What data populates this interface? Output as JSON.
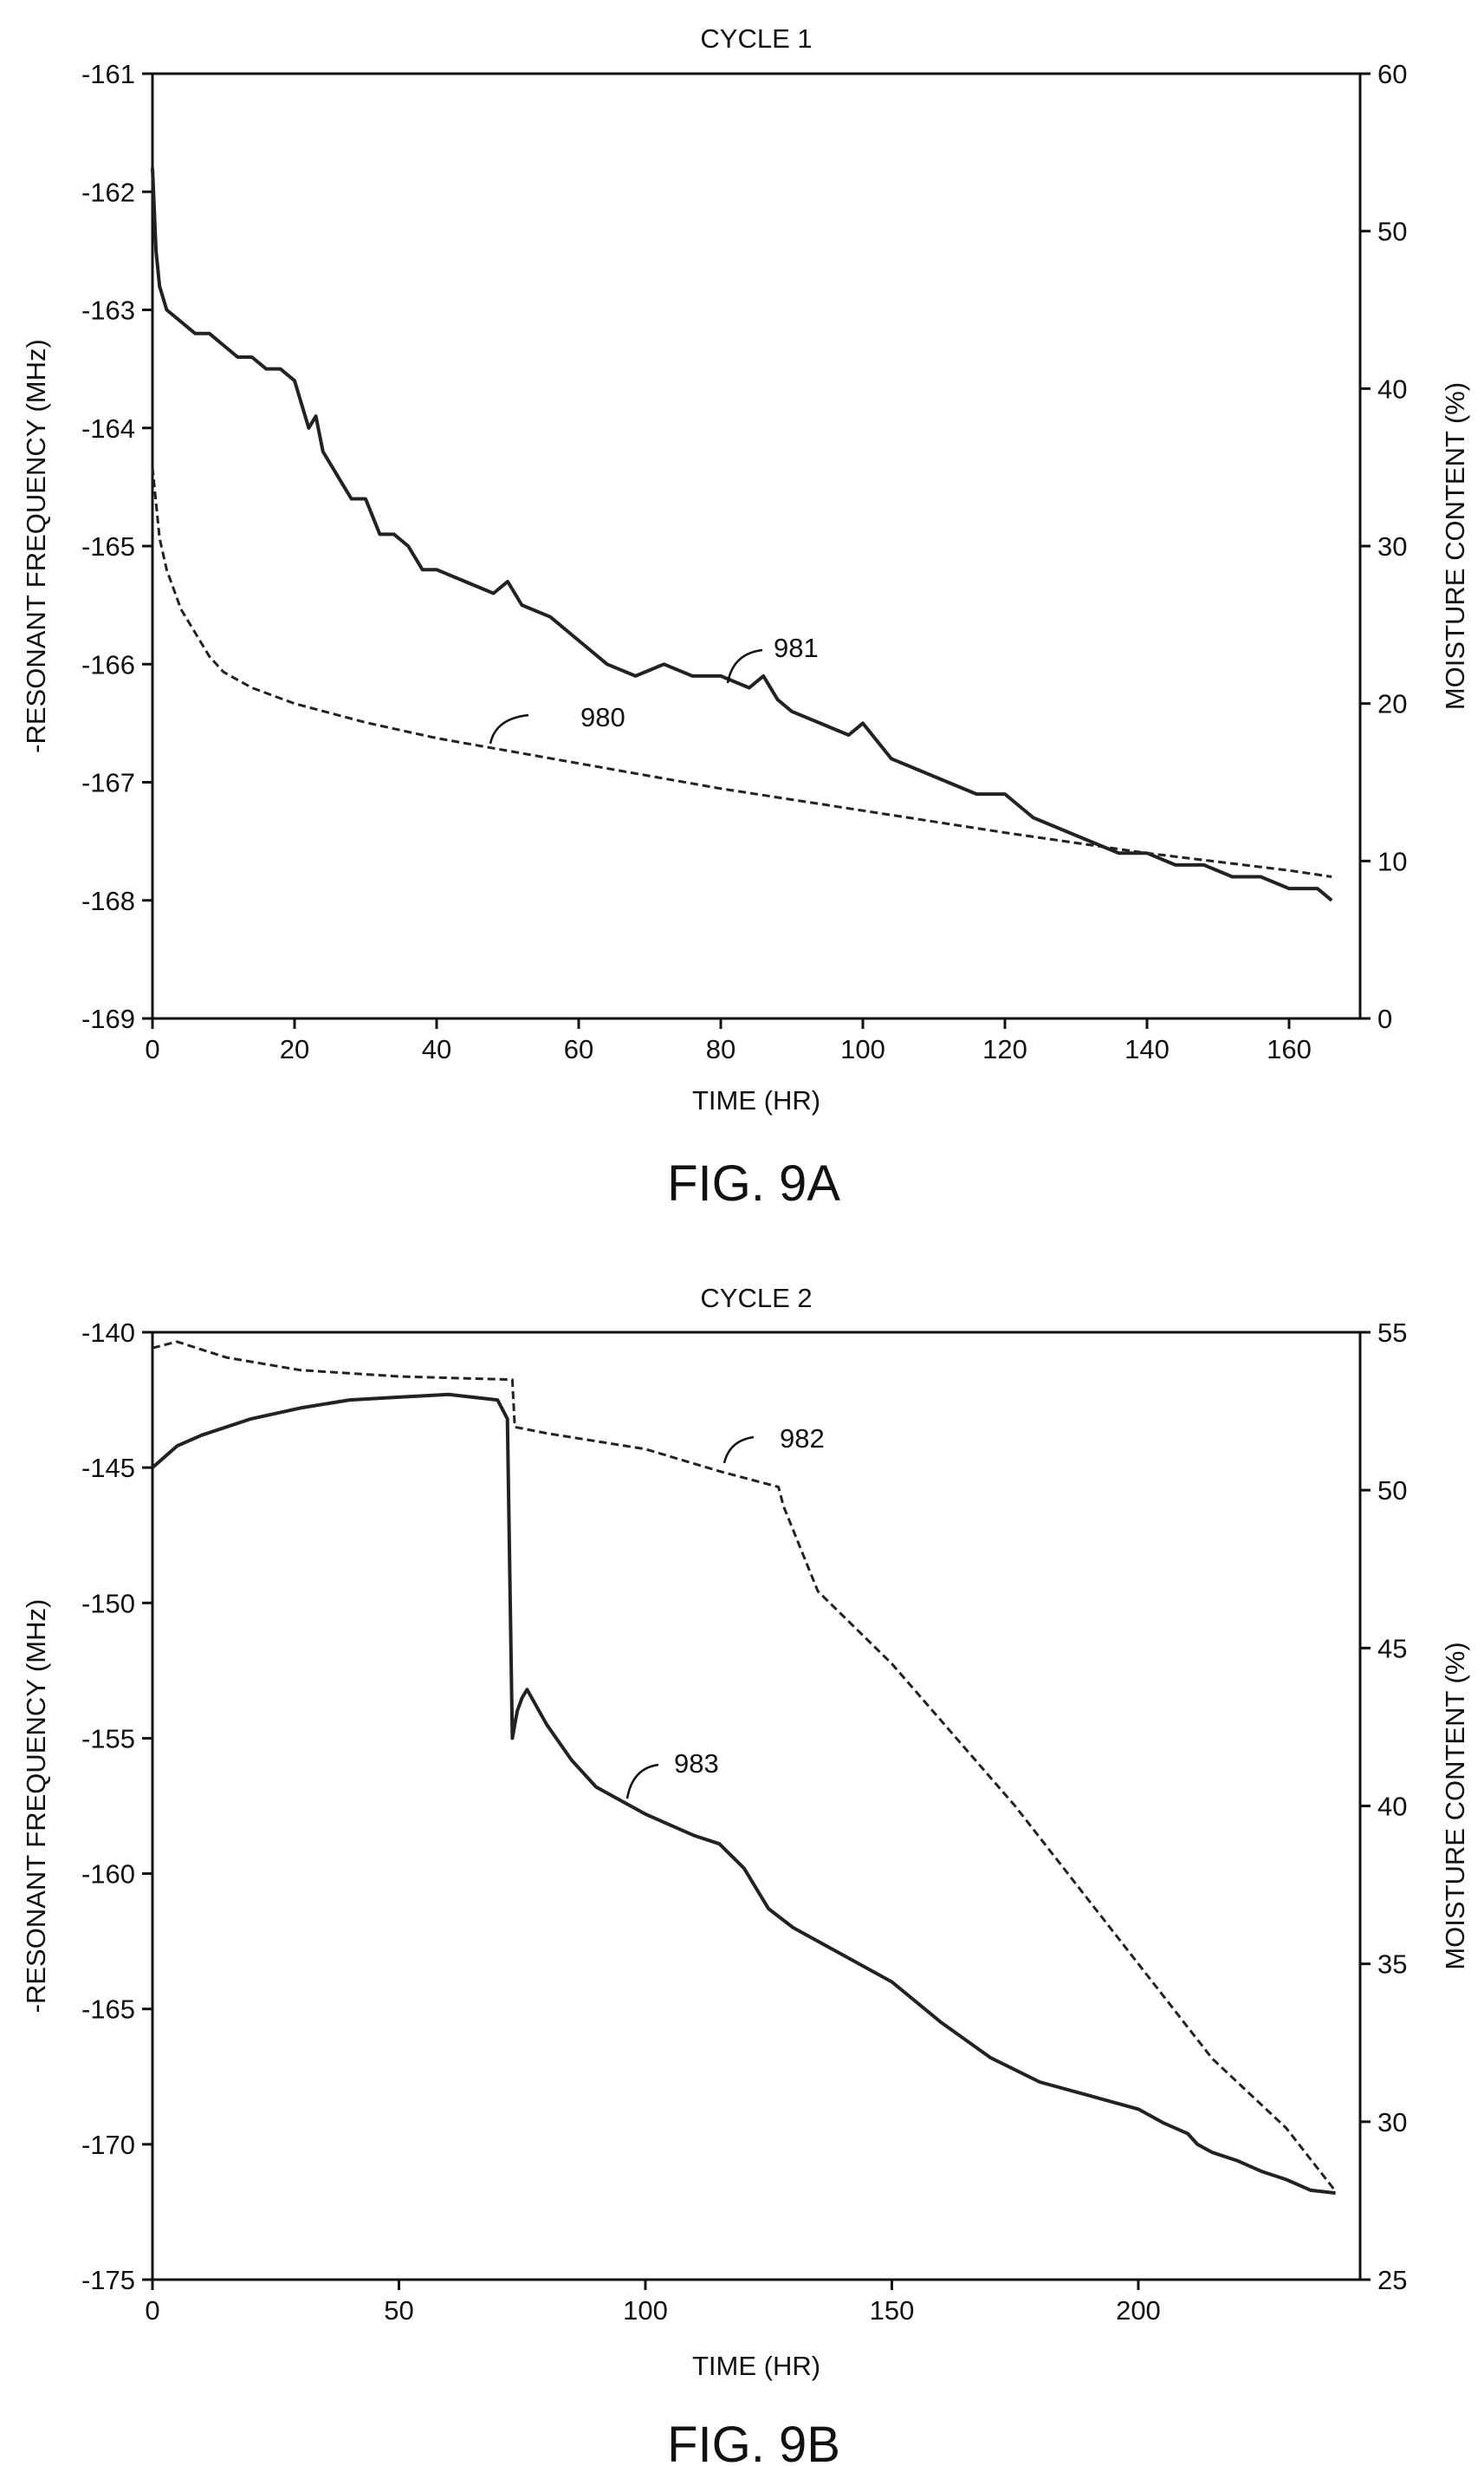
{
  "chart_data": [
    {
      "type": "line",
      "title": "CYCLE 1",
      "xlabel": "TIME (HR)",
      "ylabel": "-RESONANT FREQUENCY (MHz)",
      "y2label": "MOISTURE CONTENT (%)",
      "figure_label": "FIG. 9A",
      "xlim": [
        0,
        170
      ],
      "ylim": [
        -169,
        -161
      ],
      "y2lim": [
        0,
        60
      ],
      "xticks": [
        "0",
        "20",
        "40",
        "60",
        "80",
        "100",
        "120",
        "140",
        "160"
      ],
      "yticks": [
        "-161",
        "-162",
        "-163",
        "-164",
        "-165",
        "-166",
        "-167",
        "-168",
        "-169"
      ],
      "y2ticks": [
        "60",
        "50",
        "40",
        "30",
        "20",
        "10",
        "0"
      ],
      "grid": false,
      "series": [
        {
          "name": "980",
          "axis": "y2",
          "style": "dashed",
          "x": [
            0,
            1,
            2,
            4,
            6,
            8,
            10,
            14,
            20,
            30,
            40,
            60,
            80,
            100,
            120,
            140,
            160,
            166
          ],
          "y": [
            35,
            30.5,
            28.5,
            26,
            24.5,
            23,
            22,
            21,
            20,
            18.8,
            17.8,
            16.2,
            14.6,
            13.2,
            11.8,
            10.5,
            9.4,
            9
          ]
        },
        {
          "name": "981",
          "axis": "y",
          "style": "solid",
          "x": [
            0,
            0.5,
            1,
            2,
            4,
            6,
            8,
            10,
            12,
            14,
            16,
            18,
            20,
            22,
            23,
            24,
            26,
            28,
            30,
            32,
            34,
            36,
            38,
            40,
            44,
            48,
            50,
            52,
            56,
            60,
            64,
            68,
            72,
            76,
            80,
            84,
            86,
            88,
            90,
            94,
            98,
            100,
            104,
            108,
            112,
            116,
            120,
            124,
            128,
            132,
            136,
            140,
            144,
            148,
            152,
            156,
            160,
            164,
            166
          ],
          "y": [
            -161.8,
            -162.5,
            -162.8,
            -163.0,
            -163.1,
            -163.2,
            -163.2,
            -163.3,
            -163.4,
            -163.4,
            -163.5,
            -163.5,
            -163.6,
            -164.0,
            -163.9,
            -164.2,
            -164.4,
            -164.6,
            -164.6,
            -164.9,
            -164.9,
            -165.0,
            -165.2,
            -165.2,
            -165.3,
            -165.4,
            -165.3,
            -165.5,
            -165.6,
            -165.8,
            -166.0,
            -166.1,
            -166.0,
            -166.1,
            -166.1,
            -166.2,
            -166.1,
            -166.3,
            -166.4,
            -166.5,
            -166.6,
            -166.5,
            -166.8,
            -166.9,
            -167.0,
            -167.1,
            -167.1,
            -167.3,
            -167.4,
            -167.5,
            -167.6,
            -167.6,
            -167.7,
            -167.7,
            -167.8,
            -167.8,
            -167.9,
            -167.9,
            -168.0
          ]
        }
      ]
    },
    {
      "type": "line",
      "title": "CYCLE 2",
      "xlabel": "TIME (HR)",
      "ylabel": "-RESONANT FREQUENCY (MHz)",
      "y2label": "MOISTURE CONTENT (%)",
      "figure_label": "FIG. 9B",
      "xlim": [
        0,
        245
      ],
      "ylim": [
        -175,
        -140
      ],
      "y2lim": [
        25,
        55
      ],
      "xticks": [
        "0",
        "50",
        "100",
        "150",
        "200"
      ],
      "yticks": [
        "-140",
        "-145",
        "-150",
        "-155",
        "-160",
        "-165",
        "-170",
        "-175"
      ],
      "y2ticks": [
        "55",
        "50",
        "45",
        "40",
        "35",
        "30",
        "25"
      ],
      "grid": false,
      "series": [
        {
          "name": "982",
          "axis": "y2",
          "style": "dashed",
          "x": [
            0,
            5,
            15,
            30,
            50,
            73,
            73.5,
            80,
            100,
            115,
            127,
            128,
            135,
            150,
            175,
            200,
            215,
            230,
            240
          ],
          "y": [
            54.5,
            54.7,
            54.2,
            53.8,
            53.6,
            53.5,
            52,
            51.8,
            51.3,
            50.6,
            50.1,
            49.5,
            46.8,
            44.5,
            40,
            35,
            32,
            29.8,
            27.8
          ]
        },
        {
          "name": "983",
          "axis": "y",
          "style": "solid",
          "x": [
            0,
            5,
            10,
            20,
            30,
            40,
            50,
            60,
            70,
            72,
            73,
            74,
            75,
            76,
            80,
            85,
            90,
            95,
            100,
            105,
            110,
            115,
            120,
            125,
            130,
            140,
            150,
            160,
            170,
            180,
            190,
            200,
            205,
            210,
            212,
            215,
            220,
            225,
            230,
            235,
            240
          ],
          "y": [
            -145,
            -144.2,
            -143.8,
            -143.2,
            -142.8,
            -142.5,
            -142.4,
            -142.3,
            -142.5,
            -143.2,
            -155,
            -154,
            -153.5,
            -153.2,
            -154.5,
            -155.8,
            -156.8,
            -157.3,
            -157.8,
            -158.2,
            -158.6,
            -158.9,
            -159.8,
            -161.3,
            -162,
            -163,
            -164,
            -165.5,
            -166.8,
            -167.7,
            -168.2,
            -168.7,
            -169.2,
            -169.6,
            -170.0,
            -170.3,
            -170.6,
            -171.0,
            -171.3,
            -171.7,
            -171.8
          ]
        }
      ]
    }
  ]
}
